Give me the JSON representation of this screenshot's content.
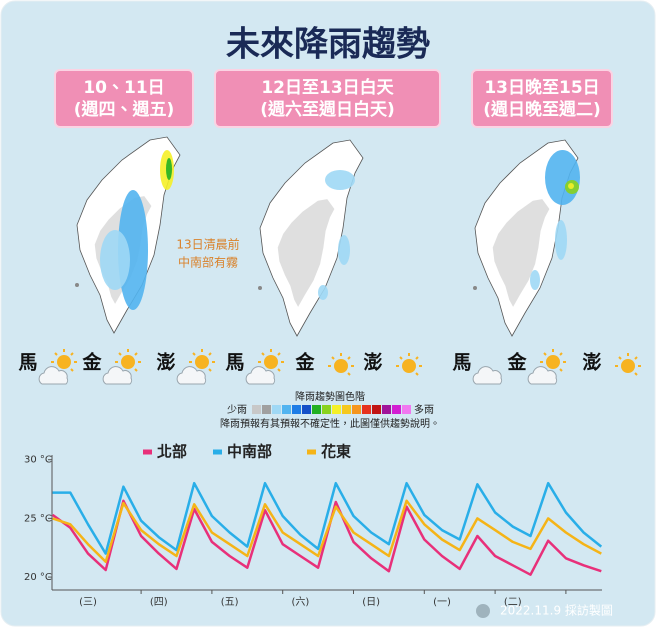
{
  "title": "未來降雨趨勢",
  "periods": [
    [
      "10、11日",
      "(週四、週五)"
    ],
    [
      "12日至13日白天",
      "(週六至週日白天)"
    ],
    [
      "13日晚至15日",
      "(週日晚至週二)"
    ]
  ],
  "islands": [
    [
      "馬",
      "金",
      "澎"
    ],
    [
      "馬",
      "金",
      "澎"
    ],
    [
      "馬",
      "金",
      "澎"
    ]
  ],
  "annotation": [
    "13日清晨前",
    "中南部有霧"
  ],
  "rain_legend": {
    "title": "降雨趨勢圖色階",
    "low": "少雨",
    "high": "多雨",
    "colors": [
      "#c8c8c8",
      "#a0a0a0",
      "#9fd8f5",
      "#52b4f0",
      "#1e7de6",
      "#1450c8",
      "#22b022",
      "#8ad21e",
      "#f5f028",
      "#f5c81e",
      "#f5961e",
      "#e6321e",
      "#c01414",
      "#a0149a",
      "#d21ed2",
      "#f078f0"
    ]
  },
  "note": "降雨預報有其預報不確定性，此圖僅供趨勢說明。",
  "credit": "2022.11.9 採訪製圖",
  "chart_data": {
    "type": "line",
    "categories": [
      null,
      null,
      "(三)",
      null,
      null,
      null,
      "(四)",
      null,
      null,
      null,
      "(五)",
      null,
      null,
      null,
      "(六)",
      null,
      null,
      null,
      "(日)",
      null,
      null,
      null,
      "(一)",
      null,
      null,
      null,
      "(二)",
      null,
      null,
      null,
      null,
      null
    ],
    "category_colors": [
      null,
      null,
      "#333333",
      null,
      null,
      null,
      "#333333",
      null,
      null,
      null,
      "#333333",
      null,
      null,
      null,
      "#d0312d",
      null,
      null,
      null,
      "#d0312d",
      null,
      null,
      null,
      "#333333",
      null,
      null,
      null,
      "#333333",
      null,
      null,
      null,
      null,
      null
    ],
    "series": [
      {
        "name": "北部",
        "color": "#e8307a",
        "values": [
          25.3,
          24.2,
          22.0,
          20.6,
          26.5,
          23.5,
          22.0,
          20.7,
          25.8,
          23.0,
          21.8,
          20.8,
          25.7,
          22.8,
          21.8,
          20.8,
          26.4,
          23.0,
          21.6,
          20.5,
          26.0,
          23.2,
          21.8,
          20.7,
          23.5,
          21.8,
          21.0,
          20.2,
          23.1,
          21.6,
          21.0,
          20.5
        ]
      },
      {
        "name": "中南部",
        "color": "#29aee8",
        "values": [
          27.2,
          27.2,
          24.5,
          22.0,
          27.7,
          24.8,
          23.4,
          22.3,
          28.0,
          25.2,
          23.8,
          22.6,
          28.0,
          25.2,
          23.6,
          22.4,
          28.0,
          25.2,
          23.8,
          22.8,
          28.0,
          25.3,
          24.0,
          23.2,
          27.9,
          25.5,
          24.3,
          23.5,
          28.0,
          25.5,
          23.8,
          22.6
        ]
      },
      {
        "name": "花東",
        "color": "#f5b417",
        "values": [
          25.0,
          24.5,
          22.8,
          21.3,
          26.3,
          24.0,
          22.8,
          21.8,
          26.2,
          23.8,
          22.8,
          21.8,
          26.2,
          23.8,
          22.8,
          21.8,
          26.0,
          23.8,
          22.8,
          21.8,
          26.5,
          24.5,
          23.2,
          22.3,
          25.0,
          24.0,
          23.0,
          22.4,
          25.0,
          23.8,
          22.8,
          22.0
        ]
      }
    ],
    "ylim": [
      18.9,
      30.4
    ],
    "yticks": [
      {
        "value": 20,
        "label": "20 °C"
      },
      {
        "value": 25,
        "label": "25 °C"
      },
      {
        "value": 30,
        "label": "30 °C"
      }
    ]
  }
}
